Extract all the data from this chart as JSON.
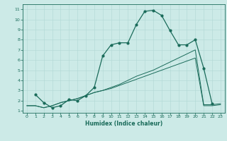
{
  "title": "",
  "xlabel": "Humidex (Indice chaleur)",
  "background_color": "#cceae7",
  "line_color": "#1a6b5a",
  "grid_color": "#b0d8d4",
  "xlim": [
    -0.5,
    23.5
  ],
  "ylim": [
    0.8,
    11.5
  ],
  "xticks": [
    0,
    1,
    2,
    3,
    4,
    5,
    6,
    7,
    8,
    9,
    10,
    11,
    12,
    13,
    14,
    15,
    16,
    17,
    18,
    19,
    20,
    21,
    22,
    23
  ],
  "yticks": [
    1,
    2,
    3,
    4,
    5,
    6,
    7,
    8,
    9,
    10,
    11
  ],
  "series1_x": [
    1,
    2,
    3,
    4,
    5,
    6,
    7,
    8,
    9,
    10,
    11,
    12,
    13,
    14,
    15,
    16,
    17,
    18,
    19,
    20,
    21,
    22
  ],
  "series1_y": [
    2.6,
    1.8,
    1.3,
    1.5,
    2.1,
    2.0,
    2.5,
    3.3,
    6.4,
    7.5,
    7.7,
    7.7,
    9.5,
    10.8,
    10.9,
    10.4,
    8.9,
    7.5,
    7.5,
    8.0,
    5.2,
    1.7
  ],
  "series2_x": [
    0,
    1,
    2,
    3,
    4,
    5,
    6,
    7,
    8,
    9,
    10,
    11,
    12,
    13,
    14,
    15,
    16,
    17,
    18,
    19,
    20,
    21,
    22,
    23
  ],
  "series2_y": [
    1.5,
    1.5,
    1.3,
    1.5,
    1.8,
    2.0,
    2.2,
    2.5,
    2.8,
    3.0,
    3.3,
    3.6,
    4.0,
    4.4,
    4.7,
    5.0,
    5.4,
    5.8,
    6.2,
    6.6,
    7.0,
    1.6,
    1.6,
    1.7
  ],
  "series3_x": [
    0,
    1,
    2,
    3,
    4,
    5,
    6,
    7,
    8,
    9,
    10,
    11,
    12,
    13,
    14,
    15,
    16,
    17,
    18,
    19,
    20,
    21,
    22,
    23
  ],
  "series3_y": [
    1.5,
    1.5,
    1.3,
    1.5,
    1.8,
    2.0,
    2.2,
    2.5,
    2.8,
    3.0,
    3.2,
    3.5,
    3.8,
    4.1,
    4.4,
    4.7,
    5.0,
    5.3,
    5.6,
    5.9,
    6.2,
    1.5,
    1.5,
    1.6
  ]
}
